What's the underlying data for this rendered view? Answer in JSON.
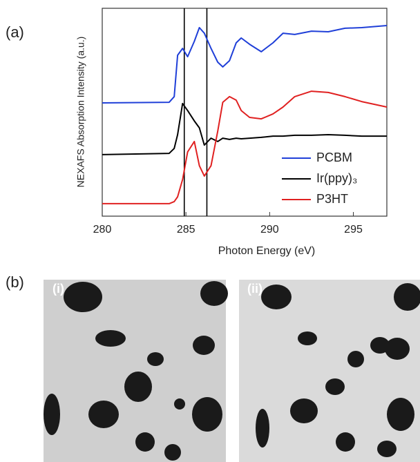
{
  "panel_labels": {
    "a": "(a)",
    "b": "(b)"
  },
  "images": [
    {
      "label": "(i)"
    },
    {
      "label": "(ii)"
    }
  ],
  "chart_data": {
    "type": "line",
    "xlabel": "Photon Energy (eV)",
    "ylabel": "NEXAFS Absorption Intensity (a.u.)",
    "x": [
      280,
      284,
      284.3,
      284.5,
      284.8,
      285.1,
      285.5,
      285.8,
      286.1,
      286.5,
      286.9,
      287.2,
      287.6,
      288,
      288.3,
      288.8,
      289.5,
      290.2,
      290.8,
      291.5,
      292.5,
      293.5,
      294.5,
      295.5,
      297
    ],
    "series": [
      {
        "name": "PCBM",
        "color": "#1f3fd8",
        "values": [
          54.5,
          54.8,
          57.5,
          77.4,
          80.7,
          76.7,
          84.1,
          90.7,
          88.0,
          80.7,
          74.1,
          71.8,
          74.8,
          83.4,
          85.7,
          82.7,
          79.1,
          83.4,
          88.0,
          87.4,
          89.0,
          88.7,
          90.4,
          90.7,
          91.7
        ]
      },
      {
        "name": "Ir(ppy)₃",
        "color": "#000000",
        "values": [
          29.6,
          30.2,
          32.6,
          39.2,
          54.2,
          50.8,
          45.8,
          42.5,
          34.2,
          37.5,
          35.9,
          37.5,
          36.9,
          37.5,
          37.2,
          37.5,
          37.9,
          38.5,
          38.5,
          38.9,
          38.9,
          39.2,
          38.9,
          38.5,
          38.5
        ]
      },
      {
        "name": "P3HT",
        "color": "#e02020",
        "values": [
          6.0,
          6.0,
          7.0,
          9.3,
          17.6,
          30.9,
          35.9,
          24.3,
          19.3,
          24.3,
          40.9,
          54.8,
          57.5,
          55.8,
          50.8,
          47.5,
          46.8,
          49.2,
          52.5,
          57.5,
          60.1,
          59.5,
          57.5,
          55.1,
          52.5
        ]
      }
    ],
    "xlim": [
      280,
      297
    ],
    "xticks": [
      280,
      285,
      290,
      295
    ],
    "ylim": [
      0,
      100
    ],
    "vlines": [
      284.9,
      286.25
    ],
    "legend": "lower-right"
  }
}
